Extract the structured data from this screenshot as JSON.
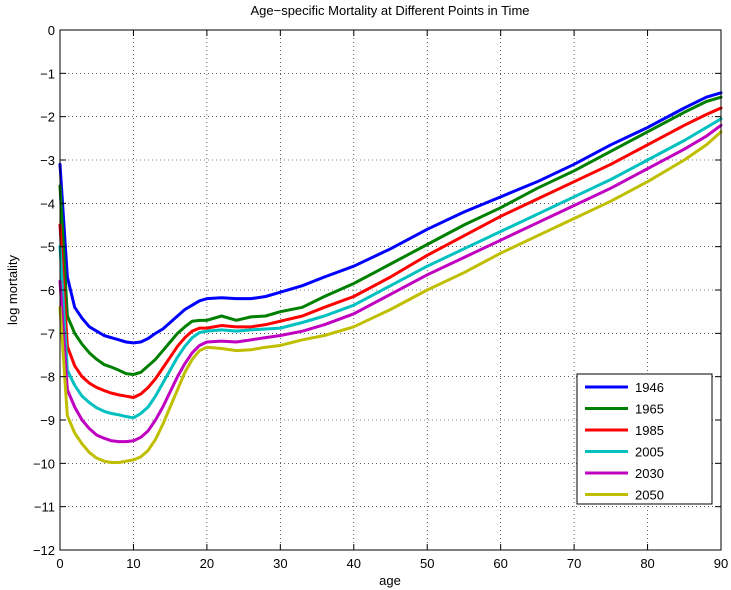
{
  "chart_data": {
    "type": "line",
    "title": "Age−specific Mortality at Different Points in Time",
    "xlabel": "age",
    "ylabel": "log mortality",
    "xlim": [
      0,
      90
    ],
    "ylim": [
      -12,
      0
    ],
    "xticks": [
      0,
      10,
      20,
      30,
      40,
      50,
      60,
      70,
      80,
      90
    ],
    "yticks": [
      0,
      -1,
      -2,
      -3,
      -4,
      -5,
      -6,
      -7,
      -8,
      -9,
      -10,
      -11,
      -12
    ],
    "xtick_labels": [
      "0",
      "10",
      "20",
      "30",
      "40",
      "50",
      "60",
      "70",
      "80",
      "90"
    ],
    "ytick_labels": [
      "0",
      "−1",
      "−2",
      "−3",
      "−4",
      "−5",
      "−6",
      "−7",
      "−8",
      "−9",
      "−10",
      "−11",
      "−12"
    ],
    "grid": true,
    "legend_position": "bottom-right",
    "series": [
      {
        "name": "1946",
        "color": "#0000ff",
        "x": [
          0,
          1,
          2,
          3,
          4,
          5,
          6,
          7,
          8,
          9,
          10,
          11,
          12,
          13,
          14,
          15,
          16,
          17,
          18,
          19,
          20,
          22,
          24,
          26,
          28,
          30,
          33,
          36,
          40,
          45,
          50,
          55,
          60,
          65,
          70,
          75,
          80,
          85,
          88,
          90
        ],
        "y": [
          -3.1,
          -5.7,
          -6.4,
          -6.65,
          -6.85,
          -6.95,
          -7.05,
          -7.1,
          -7.15,
          -7.2,
          -7.22,
          -7.2,
          -7.12,
          -7.0,
          -6.9,
          -6.75,
          -6.6,
          -6.45,
          -6.35,
          -6.25,
          -6.2,
          -6.18,
          -6.2,
          -6.2,
          -6.15,
          -6.05,
          -5.9,
          -5.7,
          -5.45,
          -5.05,
          -4.6,
          -4.2,
          -3.85,
          -3.5,
          -3.1,
          -2.65,
          -2.25,
          -1.8,
          -1.55,
          -1.45
        ]
      },
      {
        "name": "1965",
        "color": "#008000",
        "x": [
          0,
          1,
          2,
          3,
          4,
          5,
          6,
          7,
          8,
          9,
          10,
          11,
          12,
          13,
          14,
          15,
          16,
          17,
          18,
          19,
          20,
          22,
          24,
          26,
          28,
          30,
          33,
          36,
          40,
          45,
          50,
          55,
          60,
          65,
          70,
          75,
          80,
          85,
          88,
          90
        ],
        "y": [
          -3.6,
          -6.6,
          -7.0,
          -7.25,
          -7.45,
          -7.6,
          -7.72,
          -7.78,
          -7.85,
          -7.93,
          -7.95,
          -7.9,
          -7.75,
          -7.6,
          -7.4,
          -7.2,
          -7.0,
          -6.85,
          -6.72,
          -6.7,
          -6.7,
          -6.6,
          -6.7,
          -6.62,
          -6.6,
          -6.5,
          -6.4,
          -6.15,
          -5.85,
          -5.4,
          -4.95,
          -4.5,
          -4.1,
          -3.65,
          -3.25,
          -2.8,
          -2.35,
          -1.9,
          -1.65,
          -1.55
        ]
      },
      {
        "name": "1985",
        "color": "#ff0000",
        "x": [
          0,
          1,
          2,
          3,
          4,
          5,
          6,
          7,
          8,
          9,
          10,
          11,
          12,
          13,
          14,
          15,
          16,
          17,
          18,
          19,
          20,
          22,
          24,
          26,
          28,
          30,
          33,
          36,
          40,
          45,
          50,
          55,
          60,
          65,
          70,
          75,
          80,
          85,
          88,
          90
        ],
        "y": [
          -4.5,
          -7.3,
          -7.75,
          -8.0,
          -8.15,
          -8.25,
          -8.32,
          -8.38,
          -8.42,
          -8.45,
          -8.48,
          -8.4,
          -8.25,
          -8.05,
          -7.8,
          -7.55,
          -7.3,
          -7.1,
          -6.95,
          -6.88,
          -6.88,
          -6.82,
          -6.85,
          -6.85,
          -6.8,
          -6.72,
          -6.6,
          -6.4,
          -6.15,
          -5.7,
          -5.2,
          -4.75,
          -4.3,
          -3.9,
          -3.5,
          -3.1,
          -2.65,
          -2.2,
          -1.95,
          -1.8
        ]
      },
      {
        "name": "2005",
        "color": "#00c0c0",
        "x": [
          0,
          1,
          2,
          3,
          4,
          5,
          6,
          7,
          8,
          9,
          10,
          11,
          12,
          13,
          14,
          15,
          16,
          17,
          18,
          19,
          20,
          22,
          24,
          26,
          28,
          30,
          33,
          36,
          40,
          45,
          50,
          55,
          60,
          65,
          70,
          75,
          80,
          85,
          88,
          90
        ],
        "y": [
          -5.0,
          -7.85,
          -8.2,
          -8.45,
          -8.6,
          -8.72,
          -8.8,
          -8.85,
          -8.88,
          -8.92,
          -8.95,
          -8.85,
          -8.7,
          -8.45,
          -8.15,
          -7.85,
          -7.55,
          -7.3,
          -7.1,
          -6.98,
          -6.95,
          -6.92,
          -6.95,
          -6.92,
          -6.9,
          -6.88,
          -6.75,
          -6.6,
          -6.35,
          -5.9,
          -5.45,
          -5.05,
          -4.65,
          -4.25,
          -3.85,
          -3.45,
          -3.0,
          -2.55,
          -2.25,
          -2.05
        ]
      },
      {
        "name": "2030",
        "color": "#c000c0",
        "x": [
          0,
          1,
          2,
          3,
          4,
          5,
          6,
          7,
          8,
          9,
          10,
          11,
          12,
          13,
          14,
          15,
          16,
          17,
          18,
          19,
          20,
          22,
          24,
          26,
          28,
          30,
          33,
          36,
          40,
          45,
          50,
          55,
          60,
          65,
          70,
          75,
          80,
          85,
          88,
          90
        ],
        "y": [
          -5.8,
          -8.3,
          -8.7,
          -9.0,
          -9.2,
          -9.35,
          -9.42,
          -9.48,
          -9.5,
          -9.5,
          -9.48,
          -9.4,
          -9.25,
          -9.0,
          -8.7,
          -8.35,
          -8.0,
          -7.7,
          -7.45,
          -7.28,
          -7.2,
          -7.18,
          -7.2,
          -7.15,
          -7.1,
          -7.05,
          -6.95,
          -6.8,
          -6.55,
          -6.1,
          -5.65,
          -5.25,
          -4.85,
          -4.45,
          -4.05,
          -3.65,
          -3.2,
          -2.75,
          -2.45,
          -2.2
        ]
      },
      {
        "name": "2050",
        "color": "#bfbf00",
        "x": [
          0,
          1,
          2,
          3,
          4,
          5,
          6,
          7,
          8,
          9,
          10,
          11,
          12,
          13,
          14,
          15,
          16,
          17,
          18,
          19,
          20,
          22,
          24,
          26,
          28,
          30,
          33,
          36,
          40,
          45,
          50,
          55,
          60,
          65,
          70,
          75,
          80,
          85,
          88,
          90
        ],
        "y": [
          -6.4,
          -8.9,
          -9.3,
          -9.55,
          -9.75,
          -9.88,
          -9.95,
          -9.98,
          -9.98,
          -9.95,
          -9.92,
          -9.85,
          -9.7,
          -9.45,
          -9.1,
          -8.7,
          -8.3,
          -7.9,
          -7.6,
          -7.4,
          -7.32,
          -7.35,
          -7.4,
          -7.38,
          -7.32,
          -7.28,
          -7.15,
          -7.05,
          -6.85,
          -6.45,
          -6.0,
          -5.6,
          -5.15,
          -4.75,
          -4.35,
          -3.95,
          -3.5,
          -3.0,
          -2.65,
          -2.35
        ]
      }
    ]
  }
}
